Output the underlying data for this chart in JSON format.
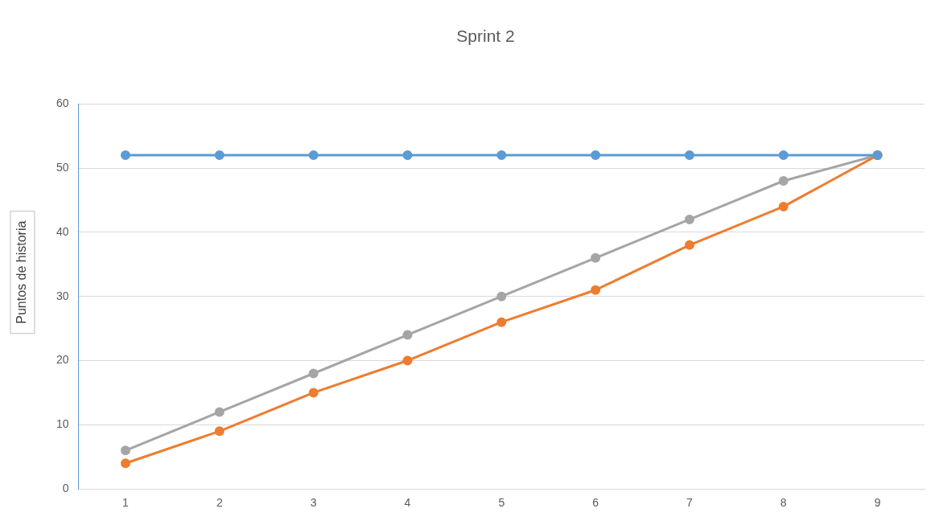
{
  "chart_data": {
    "type": "line",
    "title": "Sprint 2",
    "ylabel": "Puntos de historia",
    "categories": [
      "1",
      "2",
      "3",
      "4",
      "5",
      "6",
      "7",
      "8",
      "9"
    ],
    "series": [
      {
        "color": "#5b9bd5",
        "values": [
          52,
          52,
          52,
          52,
          52,
          52,
          52,
          52,
          52
        ]
      },
      {
        "color": "#ed7d31",
        "values": [
          4,
          9,
          15,
          20,
          26,
          31,
          38,
          44,
          52
        ]
      },
      {
        "color": "#a5a5a5",
        "values": [
          6,
          12,
          18,
          24,
          30,
          36,
          42,
          48,
          52
        ]
      }
    ],
    "ylim": [
      0,
      60
    ],
    "yticks": [
      0,
      10,
      20,
      30,
      40,
      50,
      60
    ],
    "grid": "y",
    "legend": false,
    "marker": "circle",
    "line_style": "solid"
  }
}
